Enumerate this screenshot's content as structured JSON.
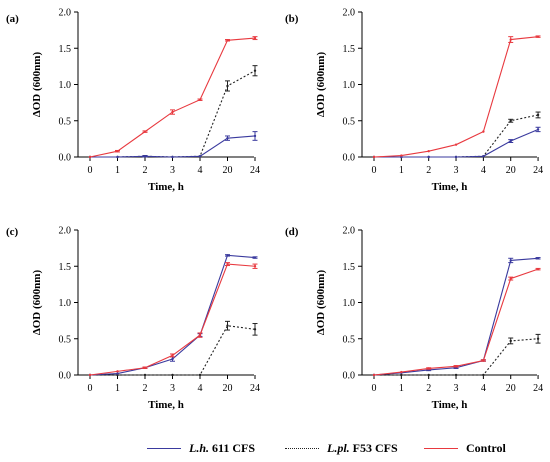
{
  "colors": {
    "lh": "#3a3a9e",
    "lpl": "#222222",
    "control": "#e8393f"
  },
  "legend": {
    "lh": {
      "italic": "L.h.",
      "rest": " 611 CFS"
    },
    "lpl": {
      "italic": "L.pl.",
      "rest": " F53 CFS"
    },
    "control": {
      "italic": "",
      "rest": "Control"
    }
  },
  "chart_data": [
    {
      "panel": "(a)",
      "type": "line",
      "categories": [
        "0",
        "1",
        "2",
        "3",
        "4",
        "20",
        "24"
      ],
      "xlabel": "Time, h",
      "ylabel": "ΔOD (600nm)",
      "ylim": [
        0,
        2.0
      ],
      "yticks": [
        "0.0",
        "0.5",
        "1.0",
        "1.5",
        "2.0"
      ],
      "series": [
        {
          "key": "lh",
          "style": "solid",
          "values": [
            0.0,
            0.0,
            0.01,
            0.0,
            0.01,
            0.26,
            0.29
          ],
          "errors": [
            0,
            0,
            0.01,
            0,
            0,
            0.03,
            0.06
          ]
        },
        {
          "key": "lpl",
          "style": "dotted",
          "values": [
            0.0,
            0.0,
            0.01,
            0.0,
            0.01,
            0.98,
            1.19
          ],
          "errors": [
            0,
            0,
            0.01,
            0,
            0,
            0.07,
            0.07
          ]
        },
        {
          "key": "control",
          "style": "solid",
          "values": [
            0.0,
            0.08,
            0.35,
            0.62,
            0.79,
            1.61,
            1.64
          ],
          "errors": [
            0,
            0.01,
            0.01,
            0.03,
            0.01,
            0.01,
            0.02
          ]
        }
      ]
    },
    {
      "panel": "(b)",
      "type": "line",
      "categories": [
        "0",
        "1",
        "2",
        "3",
        "4",
        "20",
        "24"
      ],
      "xlabel": "Time, h",
      "ylabel": "ΔOD (600nm)",
      "ylim": [
        0,
        2.0
      ],
      "yticks": [
        "0.0",
        "0.5",
        "1.0",
        "1.5",
        "2.0"
      ],
      "series": [
        {
          "key": "lh",
          "style": "solid",
          "values": [
            0.0,
            0.0,
            0.0,
            0.0,
            0.01,
            0.22,
            0.38
          ],
          "errors": [
            0,
            0,
            0,
            0,
            0,
            0.02,
            0.03
          ]
        },
        {
          "key": "lpl",
          "style": "dotted",
          "values": [
            0.0,
            0.0,
            0.0,
            0.0,
            0.01,
            0.5,
            0.58
          ],
          "errors": [
            0,
            0,
            0,
            0,
            0,
            0.02,
            0.04
          ]
        },
        {
          "key": "control",
          "style": "solid",
          "values": [
            0.0,
            0.02,
            0.08,
            0.17,
            0.35,
            1.62,
            1.66
          ],
          "errors": [
            0,
            0,
            0,
            0,
            0,
            0.04,
            0.01
          ]
        }
      ]
    },
    {
      "panel": "(c)",
      "type": "line",
      "categories": [
        "0",
        "1",
        "2",
        "3",
        "4",
        "20",
        "24"
      ],
      "xlabel": "Time, h",
      "ylabel": "ΔOD (600nm)",
      "ylim": [
        0,
        2.0
      ],
      "yticks": [
        "0.0",
        "0.5",
        "1.0",
        "1.5",
        "2.0"
      ],
      "series": [
        {
          "key": "lh",
          "style": "solid",
          "values": [
            0.0,
            0.02,
            0.1,
            0.22,
            0.55,
            1.65,
            1.62
          ],
          "errors": [
            0,
            0,
            0.01,
            0.03,
            0.02,
            0.01,
            0.01
          ]
        },
        {
          "key": "lpl",
          "style": "dotted",
          "values": [
            0.0,
            0.0,
            0.0,
            0.0,
            0.0,
            0.68,
            0.63
          ],
          "errors": [
            0,
            0,
            0,
            0,
            0,
            0.06,
            0.08
          ]
        },
        {
          "key": "control",
          "style": "solid",
          "values": [
            0.0,
            0.05,
            0.1,
            0.27,
            0.55,
            1.53,
            1.5
          ],
          "errors": [
            0,
            0,
            0.01,
            0.02,
            0.03,
            0.02,
            0.03
          ]
        }
      ]
    },
    {
      "panel": "(d)",
      "type": "line",
      "categories": [
        "0",
        "1",
        "2",
        "3",
        "4",
        "20",
        "24"
      ],
      "xlabel": "Time, h",
      "ylabel": "ΔOD (600nm)",
      "ylim": [
        0,
        2.0
      ],
      "yticks": [
        "0.0",
        "0.5",
        "1.0",
        "1.5",
        "2.0"
      ],
      "series": [
        {
          "key": "lh",
          "style": "solid",
          "values": [
            0.0,
            0.03,
            0.07,
            0.1,
            0.2,
            1.58,
            1.61
          ],
          "errors": [
            0,
            0,
            0.01,
            0.01,
            0.01,
            0.03,
            0.01
          ]
        },
        {
          "key": "lpl",
          "style": "dotted",
          "values": [
            0.0,
            0.0,
            0.0,
            0.0,
            0.0,
            0.47,
            0.5
          ],
          "errors": [
            0,
            0,
            0,
            0,
            0,
            0.04,
            0.06
          ]
        },
        {
          "key": "control",
          "style": "solid",
          "values": [
            0.0,
            0.04,
            0.09,
            0.12,
            0.2,
            1.33,
            1.46
          ],
          "errors": [
            0,
            0,
            0.01,
            0.01,
            0.01,
            0.02,
            0.01
          ]
        }
      ]
    }
  ]
}
